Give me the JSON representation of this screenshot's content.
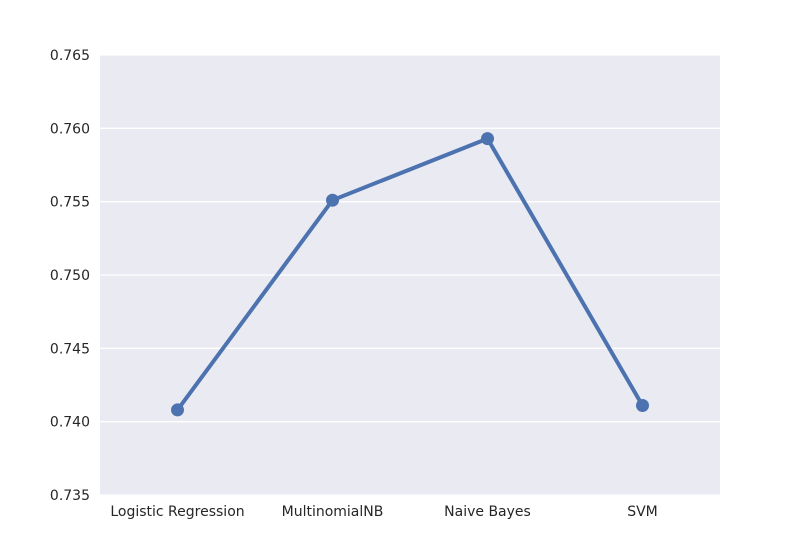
{
  "chart_data": {
    "type": "line",
    "categories": [
      "Logistic Regression",
      "MultinomialNB",
      "Naive Bayes",
      "SVM"
    ],
    "series": [
      {
        "values": [
          0.7408,
          0.7551,
          0.7593,
          0.7411
        ]
      }
    ],
    "title": "",
    "xlabel": "",
    "ylabel": "",
    "ylim": [
      0.735,
      0.765
    ],
    "yticks": [
      "0.735",
      "0.740",
      "0.745",
      "0.750",
      "0.755",
      "0.760",
      "0.765"
    ],
    "grid": true,
    "legend": "none",
    "colors": {
      "series": "#4c72b0",
      "background": "#eaeaf2",
      "grid": "#ffffff",
      "text": "#262626"
    }
  }
}
